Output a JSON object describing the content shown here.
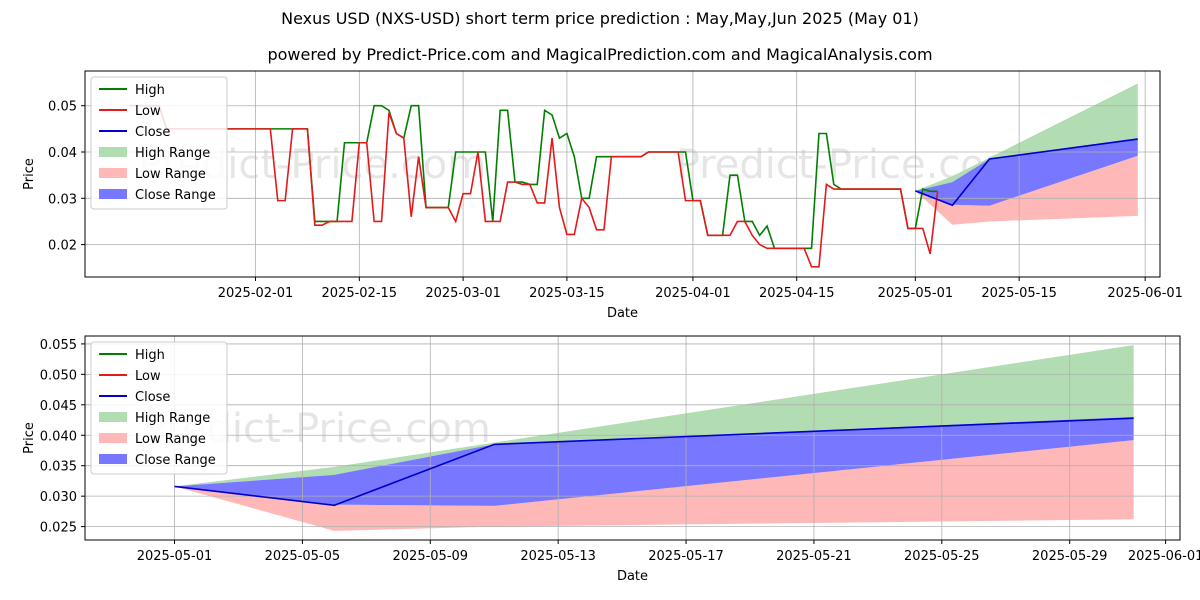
{
  "title": "Nexus USD (NXS-USD) short term price prediction : May,May,Jun 2025 (May 01)",
  "subtitle": "powered by Predict-Price.com and MagicalPrediction.com and MagicalAnalysis.com",
  "watermark": "Predict-Price.com",
  "colors": {
    "high": "#008000",
    "low": "#e31a1c",
    "close": "#0000cc",
    "high_range": "#b2dcb2",
    "low_range": "#ffb8b8",
    "close_range": "#7777ff"
  },
  "chart_data": [
    {
      "type": "line",
      "xlabel": "Date",
      "ylabel": "Price",
      "x_ticks": [
        "2025-02-01",
        "2025-02-15",
        "2025-03-01",
        "2025-03-15",
        "2025-04-01",
        "2025-04-15",
        "2025-05-01",
        "2025-05-15",
        "2025-06-01"
      ],
      "y_ticks": [
        "0.02",
        "0.03",
        "0.04",
        "0.05"
      ],
      "ylim": [
        0.013,
        0.0575
      ],
      "grid": true,
      "legend": {
        "position": "top-left",
        "entries": [
          "High",
          "Low",
          "Close",
          "High Range",
          "Low Range",
          "Close Range"
        ]
      },
      "series": [
        {
          "name": "High",
          "points": [
            [
              "2025-01-15",
              0.05
            ],
            [
              "2025-01-19",
              0.05
            ],
            [
              "2025-01-20",
              0.045
            ],
            [
              "2025-01-27",
              0.045
            ],
            [
              "2025-02-04",
              0.045
            ],
            [
              "2025-02-08",
              0.045
            ],
            [
              "2025-02-09",
              0.025
            ],
            [
              "2025-02-11",
              0.025
            ],
            [
              "2025-02-12",
              0.025
            ],
            [
              "2025-02-13",
              0.042
            ],
            [
              "2025-02-14",
              0.042
            ],
            [
              "2025-02-15",
              0.042
            ],
            [
              "2025-02-16",
              0.042
            ],
            [
              "2025-02-17",
              0.05
            ],
            [
              "2025-02-18",
              0.05
            ],
            [
              "2025-02-19",
              0.049
            ],
            [
              "2025-02-20",
              0.044
            ],
            [
              "2025-02-21",
              0.043
            ],
            [
              "2025-02-22",
              0.05
            ],
            [
              "2025-02-23",
              0.05
            ],
            [
              "2025-02-24",
              0.028
            ],
            [
              "2025-02-25",
              0.028
            ],
            [
              "2025-02-26",
              0.028
            ],
            [
              "2025-02-27",
              0.028
            ],
            [
              "2025-02-28",
              0.04
            ],
            [
              "2025-03-01",
              0.04
            ],
            [
              "2025-03-02",
              0.04
            ],
            [
              "2025-03-03",
              0.04
            ],
            [
              "2025-03-04",
              0.04
            ],
            [
              "2025-03-05",
              0.025
            ],
            [
              "2025-03-06",
              0.049
            ],
            [
              "2025-03-07",
              0.049
            ],
            [
              "2025-03-08",
              0.0335
            ],
            [
              "2025-03-09",
              0.0335
            ],
            [
              "2025-03-10",
              0.033
            ],
            [
              "2025-03-11",
              0.033
            ],
            [
              "2025-03-12",
              0.049
            ],
            [
              "2025-03-13",
              0.048
            ],
            [
              "2025-03-14",
              0.043
            ],
            [
              "2025-03-15",
              0.044
            ],
            [
              "2025-03-16",
              0.039
            ],
            [
              "2025-03-17",
              0.03
            ],
            [
              "2025-03-18",
              0.03
            ],
            [
              "2025-03-19",
              0.039
            ],
            [
              "2025-03-20",
              0.039
            ],
            [
              "2025-03-21",
              0.039
            ],
            [
              "2025-03-25",
              0.039
            ],
            [
              "2025-03-26",
              0.04
            ],
            [
              "2025-03-31",
              0.04
            ],
            [
              "2025-04-01",
              0.0295
            ],
            [
              "2025-04-02",
              0.0295
            ],
            [
              "2025-04-03",
              0.022
            ],
            [
              "2025-04-05",
              0.022
            ],
            [
              "2025-04-06",
              0.035
            ],
            [
              "2025-04-07",
              0.035
            ],
            [
              "2025-04-08",
              0.025
            ],
            [
              "2025-04-09",
              0.025
            ],
            [
              "2025-04-10",
              0.022
            ],
            [
              "2025-04-11",
              0.024
            ],
            [
              "2025-04-12",
              0.0192
            ],
            [
              "2025-04-17",
              0.0192
            ],
            [
              "2025-04-18",
              0.044
            ],
            [
              "2025-04-19",
              0.044
            ],
            [
              "2025-04-20",
              0.033
            ],
            [
              "2025-04-21",
              0.032
            ],
            [
              "2025-04-28",
              0.032
            ],
            [
              "2025-04-29",
              0.032
            ],
            [
              "2025-04-30",
              0.0235
            ],
            [
              "2025-05-01",
              0.0235
            ],
            [
              "2025-05-02",
              0.032
            ],
            [
              "2025-05-03",
              0.0315
            ],
            [
              "2025-05-04",
              0.0315
            ]
          ]
        },
        {
          "name": "Low",
          "points": [
            [
              "2025-01-15",
              0.05
            ],
            [
              "2025-01-19",
              0.05
            ],
            [
              "2025-01-20",
              0.045
            ],
            [
              "2025-02-03",
              0.045
            ],
            [
              "2025-02-04",
              0.0295
            ],
            [
              "2025-02-05",
              0.0295
            ],
            [
              "2025-02-06",
              0.045
            ],
            [
              "2025-02-08",
              0.045
            ],
            [
              "2025-02-09",
              0.0242
            ],
            [
              "2025-02-10",
              0.0242
            ],
            [
              "2025-02-11",
              0.025
            ],
            [
              "2025-02-14",
              0.025
            ],
            [
              "2025-02-15",
              0.042
            ],
            [
              "2025-02-16",
              0.042
            ],
            [
              "2025-02-17",
              0.025
            ],
            [
              "2025-02-18",
              0.025
            ],
            [
              "2025-02-19",
              0.0485
            ],
            [
              "2025-02-20",
              0.044
            ],
            [
              "2025-02-21",
              0.043
            ],
            [
              "2025-02-22",
              0.026
            ],
            [
              "2025-02-23",
              0.039
            ],
            [
              "2025-02-24",
              0.028
            ],
            [
              "2025-02-27",
              0.028
            ],
            [
              "2025-02-28",
              0.025
            ],
            [
              "2025-03-01",
              0.031
            ],
            [
              "2025-03-02",
              0.031
            ],
            [
              "2025-03-03",
              0.04
            ],
            [
              "2025-03-04",
              0.025
            ],
            [
              "2025-03-06",
              0.025
            ],
            [
              "2025-03-07",
              0.0335
            ],
            [
              "2025-03-08",
              0.0335
            ],
            [
              "2025-03-09",
              0.033
            ],
            [
              "2025-03-10",
              0.033
            ],
            [
              "2025-03-11",
              0.029
            ],
            [
              "2025-03-12",
              0.029
            ],
            [
              "2025-03-13",
              0.043
            ],
            [
              "2025-03-14",
              0.028
            ],
            [
              "2025-03-15",
              0.0222
            ],
            [
              "2025-03-16",
              0.0222
            ],
            [
              "2025-03-17",
              0.03
            ],
            [
              "2025-03-18",
              0.028
            ],
            [
              "2025-03-19",
              0.0232
            ],
            [
              "2025-03-20",
              0.0232
            ],
            [
              "2025-03-21",
              0.039
            ],
            [
              "2025-03-25",
              0.039
            ],
            [
              "2025-03-26",
              0.04
            ],
            [
              "2025-03-30",
              0.04
            ],
            [
              "2025-03-31",
              0.0295
            ],
            [
              "2025-04-02",
              0.0295
            ],
            [
              "2025-04-03",
              0.022
            ],
            [
              "2025-04-06",
              0.022
            ],
            [
              "2025-04-07",
              0.025
            ],
            [
              "2025-04-08",
              0.025
            ],
            [
              "2025-04-09",
              0.022
            ],
            [
              "2025-04-10",
              0.02
            ],
            [
              "2025-04-11",
              0.0192
            ],
            [
              "2025-04-16",
              0.0192
            ],
            [
              "2025-04-17",
              0.0152
            ],
            [
              "2025-04-18",
              0.0152
            ],
            [
              "2025-04-19",
              0.033
            ],
            [
              "2025-04-20",
              0.032
            ],
            [
              "2025-04-29",
              0.032
            ],
            [
              "2025-04-30",
              0.0235
            ],
            [
              "2025-05-02",
              0.0235
            ],
            [
              "2025-05-03",
              0.018
            ],
            [
              "2025-05-04",
              0.0315
            ]
          ]
        },
        {
          "name": "Close",
          "points": [
            [
              "2025-05-01",
              0.0316
            ],
            [
              "2025-05-06",
              0.0285
            ],
            [
              "2025-05-11",
              0.0385
            ],
            [
              "2025-05-31",
              0.0428
            ]
          ]
        }
      ],
      "ranges": {
        "high": {
          "x": [
            "2025-05-01",
            "2025-05-06",
            "2025-05-31"
          ],
          "lower": [
            0.0316,
            0.0335,
            0.043
          ],
          "upper": [
            0.0316,
            0.0348,
            0.0548
          ]
        },
        "close": {
          "x": [
            "2025-05-01",
            "2025-05-06",
            "2025-05-11",
            "2025-05-31"
          ],
          "lower": [
            0.0316,
            0.0286,
            0.0284,
            0.0392
          ],
          "upper": [
            0.0316,
            0.0335,
            0.0385,
            0.043
          ]
        },
        "low": {
          "x": [
            "2025-05-01",
            "2025-05-06",
            "2025-05-11",
            "2025-05-31"
          ],
          "lower": [
            0.0316,
            0.0243,
            0.025,
            0.0262
          ],
          "upper": [
            0.0316,
            0.0286,
            0.0284,
            0.0392
          ]
        }
      }
    },
    {
      "type": "line",
      "xlabel": "Date",
      "ylabel": "Price",
      "x_ticks": [
        "2025-05-01",
        "2025-05-05",
        "2025-05-09",
        "2025-05-13",
        "2025-05-17",
        "2025-05-21",
        "2025-05-25",
        "2025-05-29",
        "2025-06-01"
      ],
      "y_ticks": [
        "0.025",
        "0.030",
        "0.035",
        "0.040",
        "0.045",
        "0.050",
        "0.055"
      ],
      "ylim": [
        0.0228,
        0.0563
      ],
      "grid": true,
      "legend": {
        "position": "top-left",
        "entries": [
          "High",
          "Low",
          "Close",
          "High Range",
          "Low Range",
          "Close Range"
        ]
      },
      "series": [
        {
          "name": "Close",
          "points": [
            [
              "2025-05-01",
              0.0316
            ],
            [
              "2025-05-06",
              0.0285
            ],
            [
              "2025-05-11",
              0.0385
            ],
            [
              "2025-05-31",
              0.0428
            ]
          ]
        }
      ],
      "ranges": {
        "high": {
          "x": [
            "2025-05-01",
            "2025-05-06",
            "2025-05-31"
          ],
          "lower": [
            0.0316,
            0.0335,
            0.043
          ],
          "upper": [
            0.0316,
            0.0348,
            0.0548
          ]
        },
        "close": {
          "x": [
            "2025-05-01",
            "2025-05-06",
            "2025-05-11",
            "2025-05-31"
          ],
          "lower": [
            0.0316,
            0.0286,
            0.0284,
            0.0392
          ],
          "upper": [
            0.0316,
            0.0335,
            0.0385,
            0.043
          ]
        },
        "low": {
          "x": [
            "2025-05-01",
            "2025-05-06",
            "2025-05-11",
            "2025-05-31"
          ],
          "lower": [
            0.0316,
            0.0243,
            0.025,
            0.0262
          ],
          "upper": [
            0.0316,
            0.0286,
            0.0284,
            0.0392
          ]
        }
      }
    }
  ]
}
